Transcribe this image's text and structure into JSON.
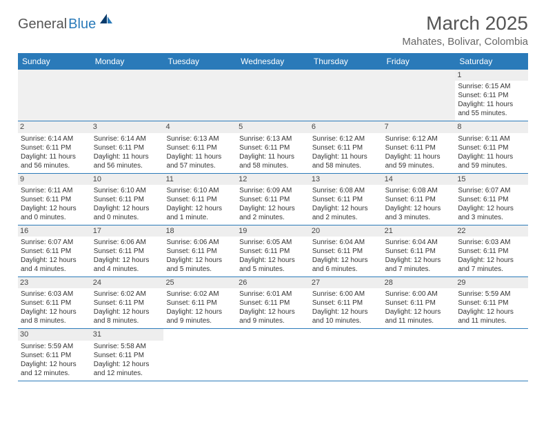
{
  "logo": {
    "main": "General",
    "accent": "Blue"
  },
  "title": "March 2025",
  "location": "Mahates, Bolivar, Colombia",
  "weekdays": [
    "Sunday",
    "Monday",
    "Tuesday",
    "Wednesday",
    "Thursday",
    "Friday",
    "Saturday"
  ],
  "colors": {
    "header_bg": "#2a7ab9",
    "row_divider": "#2a7ab9",
    "daynum_bg": "#eeeeee",
    "empty_bg": "#f0f0f0"
  },
  "weeks": [
    [
      null,
      null,
      null,
      null,
      null,
      null,
      {
        "day": "1",
        "sunrise": "Sunrise: 6:15 AM",
        "sunset": "Sunset: 6:11 PM",
        "daylight": "Daylight: 11 hours and 55 minutes."
      }
    ],
    [
      {
        "day": "2",
        "sunrise": "Sunrise: 6:14 AM",
        "sunset": "Sunset: 6:11 PM",
        "daylight": "Daylight: 11 hours and 56 minutes."
      },
      {
        "day": "3",
        "sunrise": "Sunrise: 6:14 AM",
        "sunset": "Sunset: 6:11 PM",
        "daylight": "Daylight: 11 hours and 56 minutes."
      },
      {
        "day": "4",
        "sunrise": "Sunrise: 6:13 AM",
        "sunset": "Sunset: 6:11 PM",
        "daylight": "Daylight: 11 hours and 57 minutes."
      },
      {
        "day": "5",
        "sunrise": "Sunrise: 6:13 AM",
        "sunset": "Sunset: 6:11 PM",
        "daylight": "Daylight: 11 hours and 58 minutes."
      },
      {
        "day": "6",
        "sunrise": "Sunrise: 6:12 AM",
        "sunset": "Sunset: 6:11 PM",
        "daylight": "Daylight: 11 hours and 58 minutes."
      },
      {
        "day": "7",
        "sunrise": "Sunrise: 6:12 AM",
        "sunset": "Sunset: 6:11 PM",
        "daylight": "Daylight: 11 hours and 59 minutes."
      },
      {
        "day": "8",
        "sunrise": "Sunrise: 6:11 AM",
        "sunset": "Sunset: 6:11 PM",
        "daylight": "Daylight: 11 hours and 59 minutes."
      }
    ],
    [
      {
        "day": "9",
        "sunrise": "Sunrise: 6:11 AM",
        "sunset": "Sunset: 6:11 PM",
        "daylight": "Daylight: 12 hours and 0 minutes."
      },
      {
        "day": "10",
        "sunrise": "Sunrise: 6:10 AM",
        "sunset": "Sunset: 6:11 PM",
        "daylight": "Daylight: 12 hours and 0 minutes."
      },
      {
        "day": "11",
        "sunrise": "Sunrise: 6:10 AM",
        "sunset": "Sunset: 6:11 PM",
        "daylight": "Daylight: 12 hours and 1 minute."
      },
      {
        "day": "12",
        "sunrise": "Sunrise: 6:09 AM",
        "sunset": "Sunset: 6:11 PM",
        "daylight": "Daylight: 12 hours and 2 minutes."
      },
      {
        "day": "13",
        "sunrise": "Sunrise: 6:08 AM",
        "sunset": "Sunset: 6:11 PM",
        "daylight": "Daylight: 12 hours and 2 minutes."
      },
      {
        "day": "14",
        "sunrise": "Sunrise: 6:08 AM",
        "sunset": "Sunset: 6:11 PM",
        "daylight": "Daylight: 12 hours and 3 minutes."
      },
      {
        "day": "15",
        "sunrise": "Sunrise: 6:07 AM",
        "sunset": "Sunset: 6:11 PM",
        "daylight": "Daylight: 12 hours and 3 minutes."
      }
    ],
    [
      {
        "day": "16",
        "sunrise": "Sunrise: 6:07 AM",
        "sunset": "Sunset: 6:11 PM",
        "daylight": "Daylight: 12 hours and 4 minutes."
      },
      {
        "day": "17",
        "sunrise": "Sunrise: 6:06 AM",
        "sunset": "Sunset: 6:11 PM",
        "daylight": "Daylight: 12 hours and 4 minutes."
      },
      {
        "day": "18",
        "sunrise": "Sunrise: 6:06 AM",
        "sunset": "Sunset: 6:11 PM",
        "daylight": "Daylight: 12 hours and 5 minutes."
      },
      {
        "day": "19",
        "sunrise": "Sunrise: 6:05 AM",
        "sunset": "Sunset: 6:11 PM",
        "daylight": "Daylight: 12 hours and 5 minutes."
      },
      {
        "day": "20",
        "sunrise": "Sunrise: 6:04 AM",
        "sunset": "Sunset: 6:11 PM",
        "daylight": "Daylight: 12 hours and 6 minutes."
      },
      {
        "day": "21",
        "sunrise": "Sunrise: 6:04 AM",
        "sunset": "Sunset: 6:11 PM",
        "daylight": "Daylight: 12 hours and 7 minutes."
      },
      {
        "day": "22",
        "sunrise": "Sunrise: 6:03 AM",
        "sunset": "Sunset: 6:11 PM",
        "daylight": "Daylight: 12 hours and 7 minutes."
      }
    ],
    [
      {
        "day": "23",
        "sunrise": "Sunrise: 6:03 AM",
        "sunset": "Sunset: 6:11 PM",
        "daylight": "Daylight: 12 hours and 8 minutes."
      },
      {
        "day": "24",
        "sunrise": "Sunrise: 6:02 AM",
        "sunset": "Sunset: 6:11 PM",
        "daylight": "Daylight: 12 hours and 8 minutes."
      },
      {
        "day": "25",
        "sunrise": "Sunrise: 6:02 AM",
        "sunset": "Sunset: 6:11 PM",
        "daylight": "Daylight: 12 hours and 9 minutes."
      },
      {
        "day": "26",
        "sunrise": "Sunrise: 6:01 AM",
        "sunset": "Sunset: 6:11 PM",
        "daylight": "Daylight: 12 hours and 9 minutes."
      },
      {
        "day": "27",
        "sunrise": "Sunrise: 6:00 AM",
        "sunset": "Sunset: 6:11 PM",
        "daylight": "Daylight: 12 hours and 10 minutes."
      },
      {
        "day": "28",
        "sunrise": "Sunrise: 6:00 AM",
        "sunset": "Sunset: 6:11 PM",
        "daylight": "Daylight: 12 hours and 11 minutes."
      },
      {
        "day": "29",
        "sunrise": "Sunrise: 5:59 AM",
        "sunset": "Sunset: 6:11 PM",
        "daylight": "Daylight: 12 hours and 11 minutes."
      }
    ],
    [
      {
        "day": "30",
        "sunrise": "Sunrise: 5:59 AM",
        "sunset": "Sunset: 6:11 PM",
        "daylight": "Daylight: 12 hours and 12 minutes."
      },
      {
        "day": "31",
        "sunrise": "Sunrise: 5:58 AM",
        "sunset": "Sunset: 6:11 PM",
        "daylight": "Daylight: 12 hours and 12 minutes."
      },
      null,
      null,
      null,
      null,
      null
    ]
  ]
}
